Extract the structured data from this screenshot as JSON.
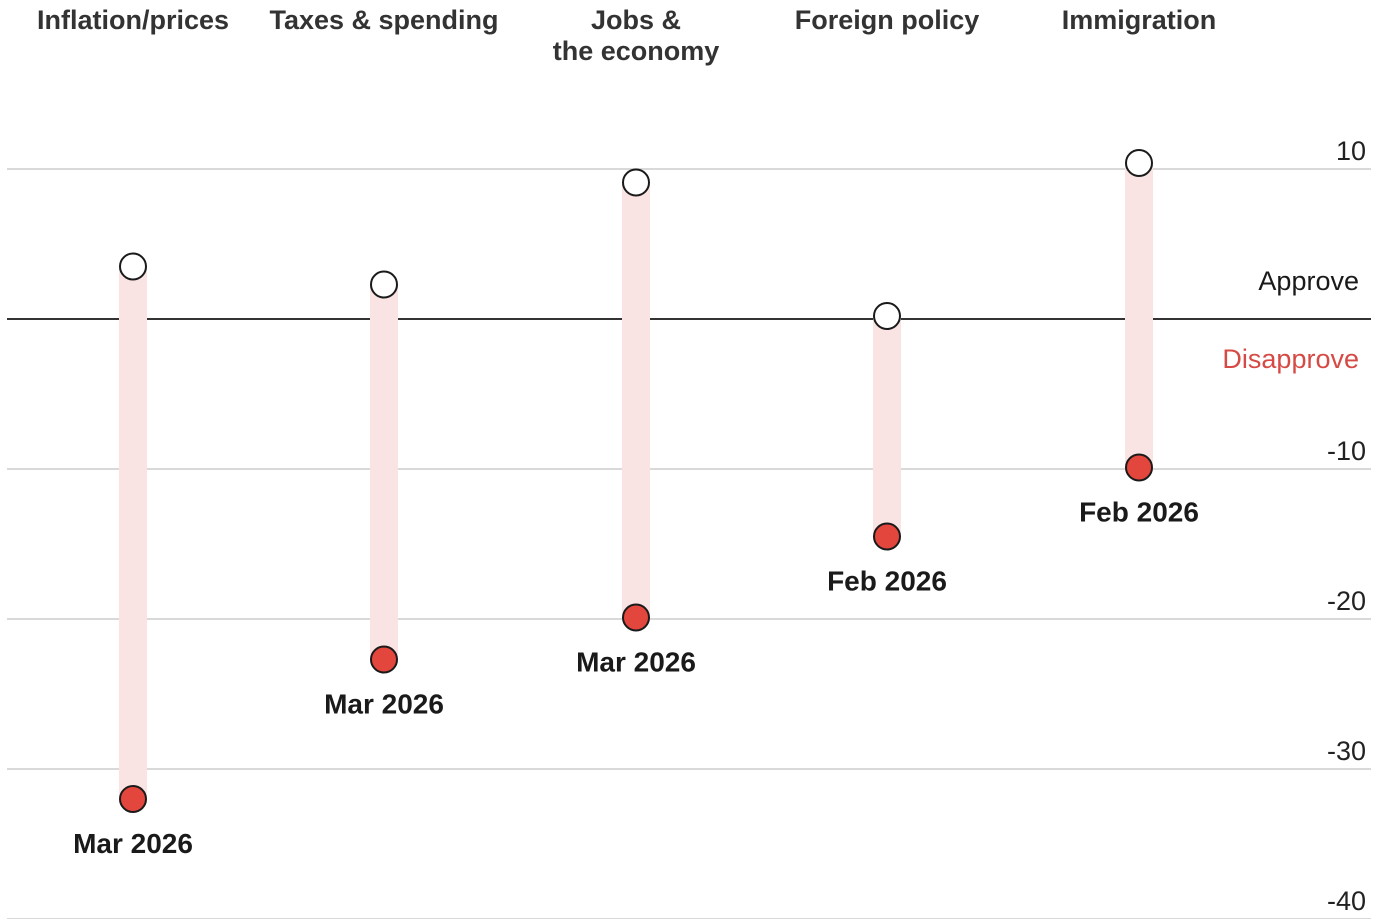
{
  "chart_data": {
    "type": "dot-range",
    "ylim": [
      -40,
      13
    ],
    "yticks": [
      {
        "value": 10,
        "label": "10"
      },
      {
        "value": -10,
        "label": "-10"
      },
      {
        "value": -20,
        "label": "-20"
      },
      {
        "value": -30,
        "label": "-30"
      },
      {
        "value": -40,
        "label": "-40"
      }
    ],
    "zero_labels": {
      "above": "Approve",
      "below": "Disapprove"
    },
    "categories": [
      {
        "name_lines": [
          "Inflation/prices"
        ],
        "high": 3.5,
        "low": -32,
        "date": "Mar 2026"
      },
      {
        "name_lines": [
          "Taxes & spending"
        ],
        "high": 2.3,
        "low": -22.7,
        "date": "Mar 2026"
      },
      {
        "name_lines": [
          "Jobs &",
          "the economy"
        ],
        "high": 9.1,
        "low": -19.9,
        "date": "Mar 2026"
      },
      {
        "name_lines": [
          "Foreign policy"
        ],
        "high": 0.2,
        "low": -14.5,
        "date": "Feb 2026"
      },
      {
        "name_lines": [
          "Immigration"
        ],
        "high": 10.4,
        "low": -9.9,
        "date": "Feb 2026"
      }
    ],
    "colors": {
      "high_dot_fill": "#ffffff",
      "low_dot_fill": "#e3463d",
      "range_bar": "#f9e4e3",
      "disapprove_text": "#d64a45",
      "approve_text": "#1a1a1a"
    }
  }
}
